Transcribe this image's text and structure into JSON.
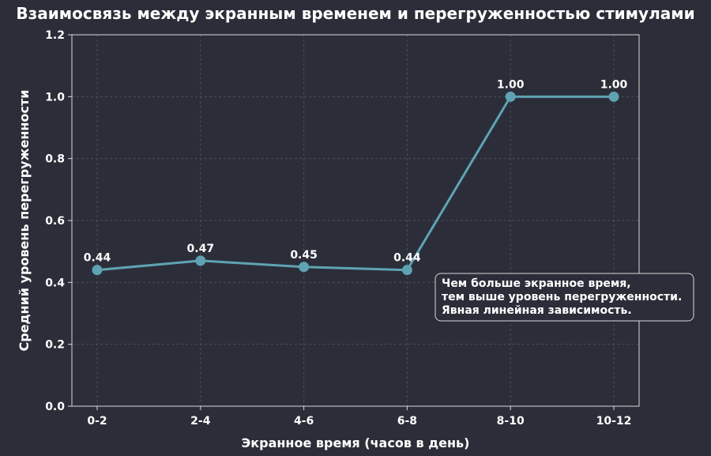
{
  "chart_data": {
    "type": "line",
    "title": "Взаимосвязь между экранным временем и перегруженностью стимулами",
    "xlabel": "Экранное время (часов в день)",
    "ylabel": "Средний уровень перегруженности",
    "categories": [
      "0-2",
      "2-4",
      "4-6",
      "6-8",
      "8-10",
      "10-12"
    ],
    "values": [
      0.44,
      0.47,
      0.45,
      0.44,
      1.0,
      1.0
    ],
    "data_labels": [
      "0.44",
      "0.47",
      "0.45",
      "0.44",
      "1.00",
      "1.00"
    ],
    "ylim": [
      0,
      1.2
    ],
    "yticks": [
      "0.0",
      "0.2",
      "0.4",
      "0.6",
      "0.8",
      "1.0",
      "1.2"
    ],
    "grid": true,
    "line_color": "#5fa3b3",
    "annotation": {
      "lines": [
        "Чем больше экранное время,",
        "тем выше уровень перегруженности.",
        "Явная линейная зависимость."
      ]
    }
  }
}
